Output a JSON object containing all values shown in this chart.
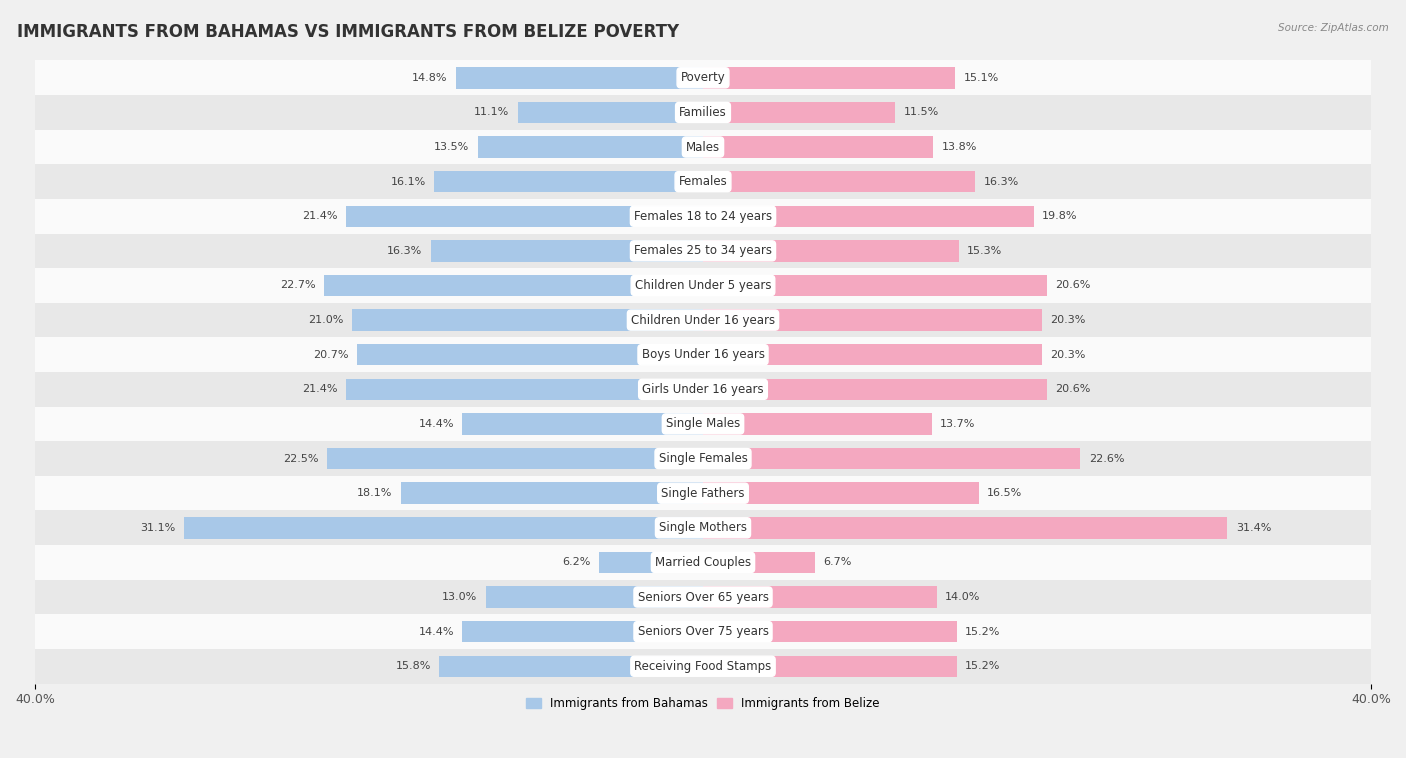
{
  "title": "IMMIGRANTS FROM BAHAMAS VS IMMIGRANTS FROM BELIZE POVERTY",
  "source": "Source: ZipAtlas.com",
  "categories": [
    "Poverty",
    "Families",
    "Males",
    "Females",
    "Females 18 to 24 years",
    "Females 25 to 34 years",
    "Children Under 5 years",
    "Children Under 16 years",
    "Boys Under 16 years",
    "Girls Under 16 years",
    "Single Males",
    "Single Females",
    "Single Fathers",
    "Single Mothers",
    "Married Couples",
    "Seniors Over 65 years",
    "Seniors Over 75 years",
    "Receiving Food Stamps"
  ],
  "bahamas_values": [
    14.8,
    11.1,
    13.5,
    16.1,
    21.4,
    16.3,
    22.7,
    21.0,
    20.7,
    21.4,
    14.4,
    22.5,
    18.1,
    31.1,
    6.2,
    13.0,
    14.4,
    15.8
  ],
  "belize_values": [
    15.1,
    11.5,
    13.8,
    16.3,
    19.8,
    15.3,
    20.6,
    20.3,
    20.3,
    20.6,
    13.7,
    22.6,
    16.5,
    31.4,
    6.7,
    14.0,
    15.2,
    15.2
  ],
  "bahamas_color": "#a8c8e8",
  "belize_color": "#f4a8c0",
  "background_color": "#f0f0f0",
  "row_light_color": "#fafafa",
  "row_dark_color": "#e8e8e8",
  "xlim": 40.0,
  "bar_height": 0.62,
  "legend_bahamas": "Immigrants from Bahamas",
  "legend_belize": "Immigrants from Belize",
  "title_fontsize": 12,
  "label_fontsize": 8.5,
  "value_fontsize": 8,
  "axis_fontsize": 9
}
